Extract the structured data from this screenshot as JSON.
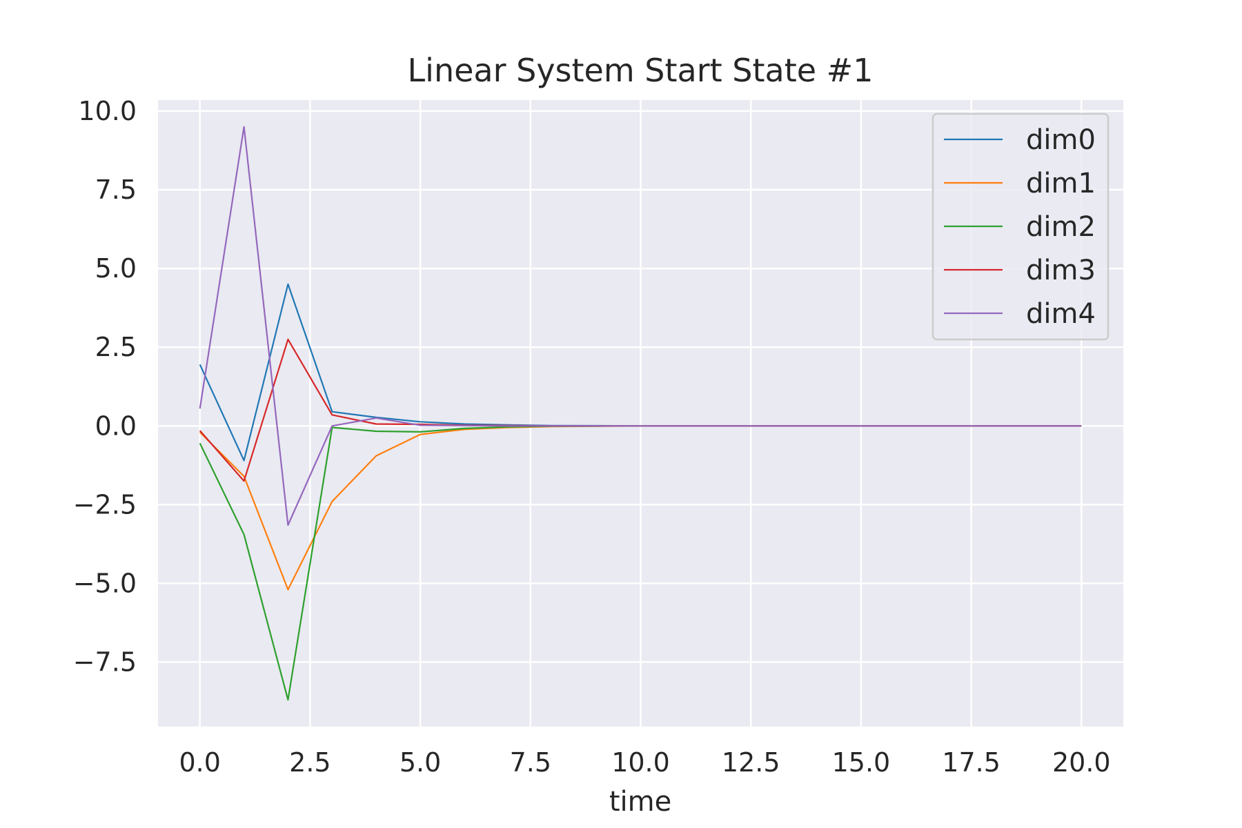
{
  "chart_data": {
    "type": "line",
    "title": "Linear System Start State #1",
    "xlabel": "time",
    "ylabel": "",
    "xlim": [
      -0.95,
      20.95
    ],
    "ylim": [
      -9.55,
      10.35
    ],
    "xticks": [
      0.0,
      2.5,
      5.0,
      7.5,
      10.0,
      12.5,
      15.0,
      17.5,
      20.0
    ],
    "yticks": [
      -7.5,
      -5.0,
      -2.5,
      0.0,
      2.5,
      5.0,
      7.5,
      10.0
    ],
    "xtick_labels": [
      "0.0",
      "2.5",
      "5.0",
      "7.5",
      "10.0",
      "12.5",
      "15.0",
      "17.5",
      "20.0"
    ],
    "ytick_labels": [
      "−7.5",
      "−5.0",
      "−2.5",
      "0.0",
      "2.5",
      "5.0",
      "7.5",
      "10.0"
    ],
    "grid": true,
    "legend_position": "top-right",
    "x": [
      0,
      1,
      2,
      3,
      4,
      5,
      6,
      7,
      8,
      9,
      10,
      11,
      12,
      13,
      14,
      15,
      16,
      17,
      18,
      19,
      20
    ],
    "series": [
      {
        "name": "dim0",
        "color": "#1f77b4",
        "values": [
          1.95,
          -1.1,
          4.5,
          0.45,
          0.27,
          0.13,
          0.06,
          0.03,
          0.01,
          0.005,
          0,
          0,
          0,
          0,
          0,
          0,
          0,
          0,
          0,
          0,
          0
        ]
      },
      {
        "name": "dim1",
        "color": "#ff7f0e",
        "values": [
          -0.2,
          -1.6,
          -5.2,
          -2.4,
          -0.95,
          -0.27,
          -0.11,
          -0.05,
          -0.02,
          -0.01,
          0,
          0,
          0,
          0,
          0,
          0,
          0,
          0,
          0,
          0,
          0
        ]
      },
      {
        "name": "dim2",
        "color": "#2ca02c",
        "values": [
          -0.55,
          -3.45,
          -8.7,
          -0.05,
          -0.17,
          -0.19,
          -0.08,
          -0.03,
          -0.01,
          -0.005,
          0,
          0,
          0,
          0,
          0,
          0,
          0,
          0,
          0,
          0,
          0
        ]
      },
      {
        "name": "dim3",
        "color": "#d62728",
        "values": [
          -0.15,
          -1.75,
          2.75,
          0.35,
          0.06,
          0.05,
          0.02,
          0.01,
          0,
          0,
          0,
          0,
          0,
          0,
          0,
          0,
          0,
          0,
          0,
          0,
          0
        ]
      },
      {
        "name": "dim4",
        "color": "#9467bd",
        "values": [
          0.55,
          9.5,
          -3.15,
          0.0,
          0.25,
          0.02,
          0.01,
          0,
          0,
          0,
          0,
          0,
          0,
          0,
          0,
          0,
          0,
          0,
          0,
          0,
          0
        ]
      }
    ]
  }
}
